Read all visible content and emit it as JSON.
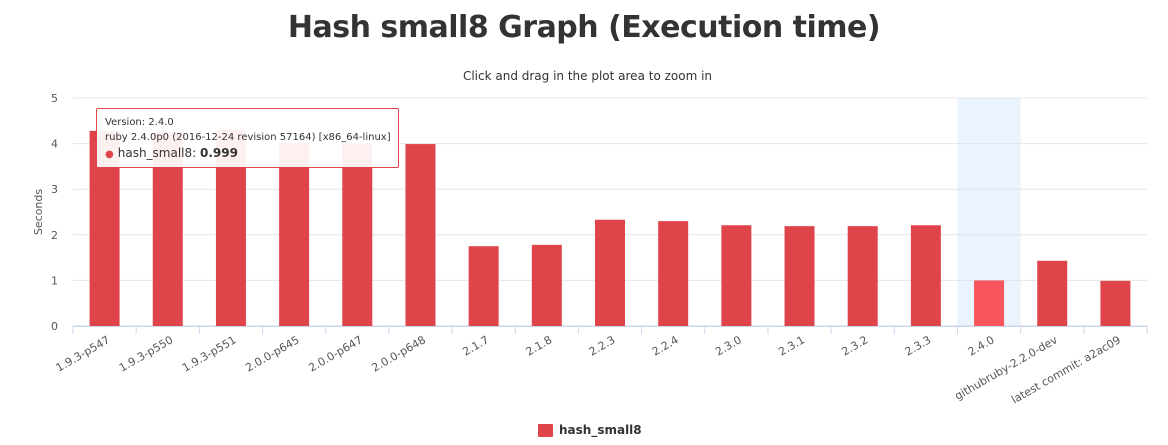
{
  "chart_data": {
    "type": "bar",
    "title": "Hash small8 Graph (Execution time)",
    "subtitle": "Click and drag in the plot area to zoom in",
    "xlabel": "",
    "ylabel": "Seconds",
    "ylim": [
      0,
      5
    ],
    "yticks": [
      "0",
      "1",
      "2",
      "3",
      "4",
      "5"
    ],
    "grid": true,
    "legend_position": "bottom-center",
    "categories": [
      "1.9.3-p547",
      "1.9.3-p550",
      "1.9.3-p551",
      "2.0.0-p645",
      "2.0.0-p647",
      "2.0.0-p648",
      "2.1.7",
      "2.1.8",
      "2.2.3",
      "2.2.4",
      "2.3.0",
      "2.3.1",
      "2.3.2",
      "2.3.3",
      "2.4.0",
      "githubruby-2.2.0-dev",
      "latest commit: a2ac09"
    ],
    "series": [
      {
        "name": "hash_small8",
        "color": "#e0444b",
        "values": [
          4.28,
          4.25,
          4.3,
          4.02,
          4.0,
          3.99,
          1.75,
          1.78,
          2.33,
          2.3,
          2.21,
          2.19,
          2.19,
          2.21,
          0.999,
          1.43,
          0.99
        ]
      }
    ],
    "highlight_index": 14,
    "highlight_color": "#f7565d",
    "tooltip": {
      "version_line": "Version: 2.4.0",
      "ruby_line": "ruby 2.4.0p0 (2016-12-24 revision 57164) [x86_64-linux]",
      "series_label": "hash_small8: ",
      "value": "0.999"
    }
  }
}
